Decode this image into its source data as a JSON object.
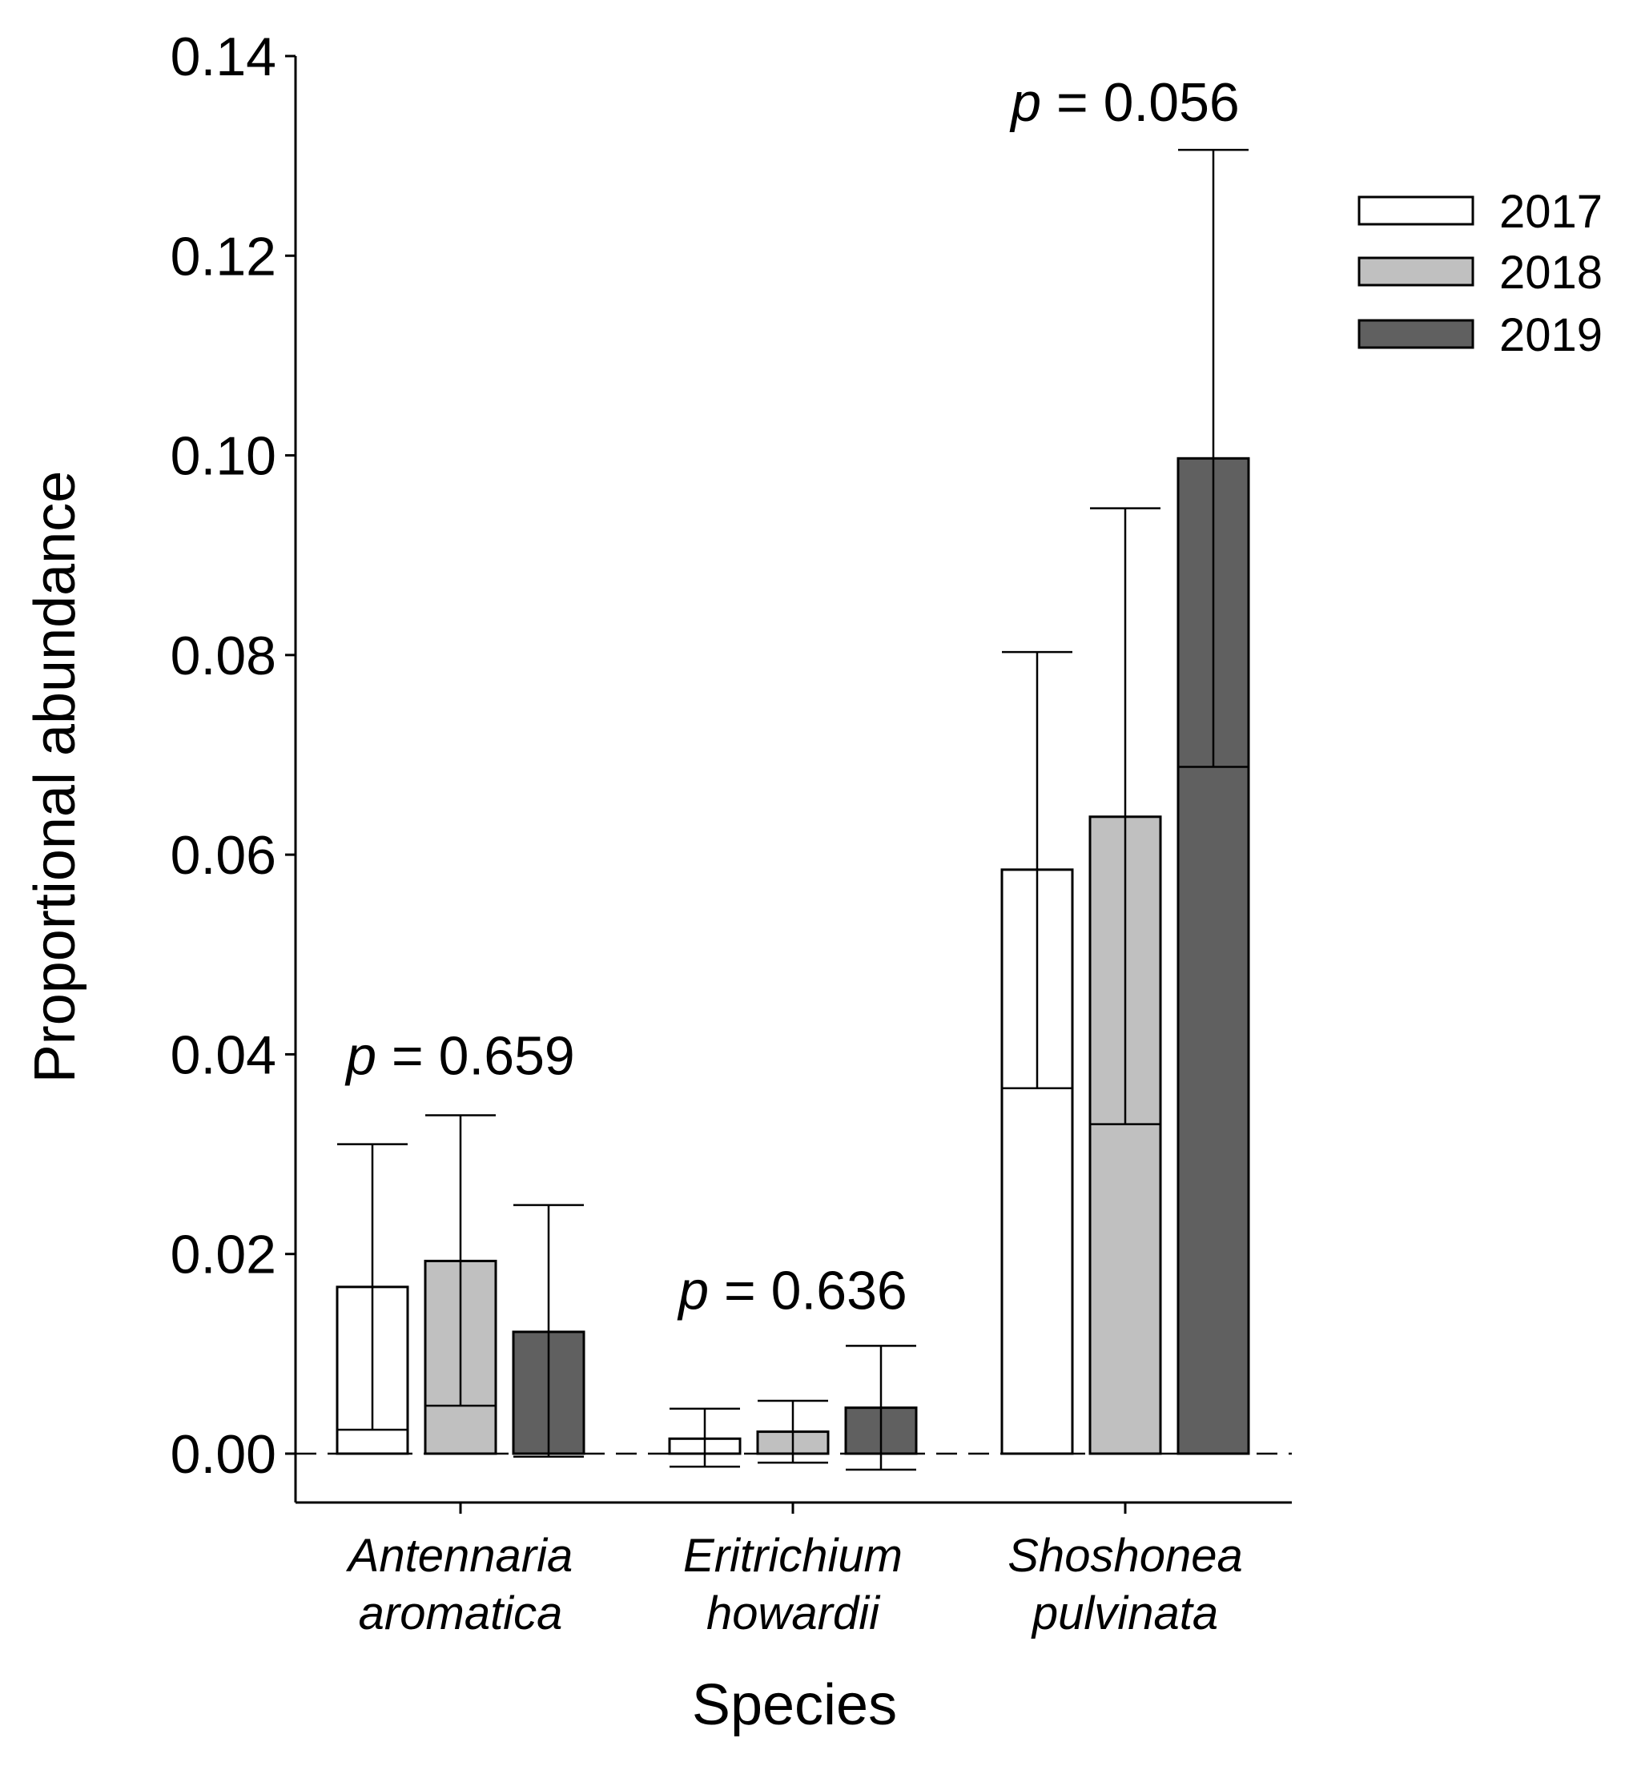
{
  "chart_data": {
    "type": "bar",
    "categories": [
      {
        "line1": "Antennaria",
        "line2": "aromatica"
      },
      {
        "line1": "Eritrichium",
        "line2": "howardii"
      },
      {
        "line1": "Shoshonea",
        "line2": "pulvinata"
      }
    ],
    "series": [
      {
        "name": "2017",
        "color": "#ffffff",
        "values": [
          0.0167,
          0.0015,
          0.0585
        ],
        "lower": [
          0.0024,
          -0.0013,
          0.0366
        ],
        "upper": [
          0.031,
          0.0045,
          0.0803
        ]
      },
      {
        "name": "2018",
        "color": "#c0c0c0",
        "values": [
          0.0193,
          0.0022,
          0.0638
        ],
        "lower": [
          0.0048,
          -0.0009,
          0.033
        ],
        "upper": [
          0.0339,
          0.0053,
          0.0947
        ]
      },
      {
        "name": "2019",
        "color": "#606060",
        "values": [
          0.0122,
          0.0046,
          0.0997
        ],
        "lower": [
          -0.0003,
          -0.0016,
          0.0688
        ],
        "upper": [
          0.0249,
          0.0108,
          0.1306
        ]
      }
    ],
    "p_values": [
      {
        "label": "p",
        "eq": " = 0.659",
        "x_index": 0,
        "y": 0.038
      },
      {
        "label": "p",
        "eq": " = 0.636",
        "x_index": 1,
        "y": 0.0145
      },
      {
        "label": "p",
        "eq": " = 0.056",
        "x_index": 2,
        "y": 0.1335
      }
    ],
    "yticks": [
      "0.00",
      "0.02",
      "0.04",
      "0.06",
      "0.08",
      "0.10",
      "0.12",
      "0.14"
    ],
    "ylim": [
      -0.005,
      0.14
    ],
    "xlabel": "Species",
    "ylabel": "Proportional abundance",
    "reference_line": 0,
    "legend_position": "top-right"
  }
}
